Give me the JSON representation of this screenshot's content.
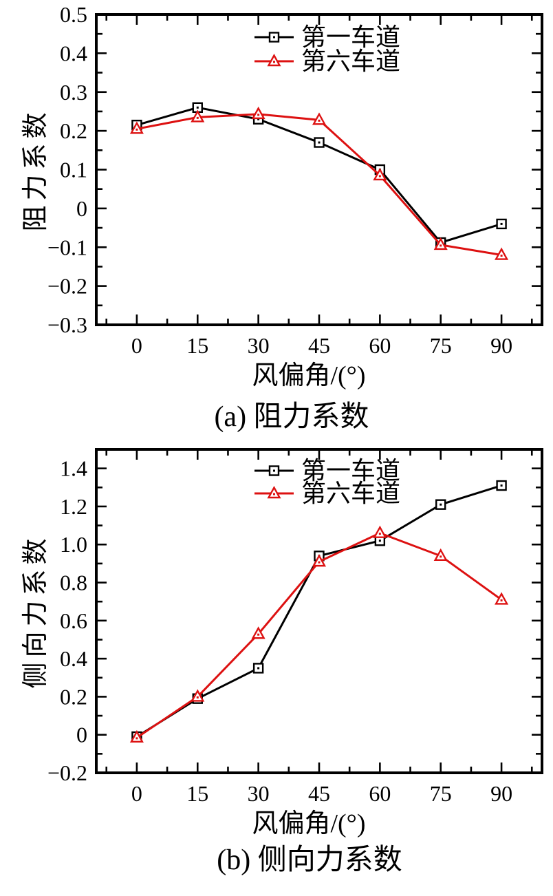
{
  "page": {
    "background": "#ffffff"
  },
  "colors": {
    "series1": "#000000",
    "series2": "#dd1111",
    "axis": "#000000"
  },
  "chart_data": [
    {
      "type": "line",
      "caption": "(a) 阻力系数",
      "xlabel": "风偏角/(°)",
      "ylabel": "阻力系数",
      "x": [
        0,
        15,
        30,
        45,
        60,
        75,
        90
      ],
      "xtick_labels": [
        "0",
        "15",
        "30",
        "45",
        "60",
        "75",
        "90"
      ],
      "xlim": [
        -10,
        100
      ],
      "ylim": [
        -0.3,
        0.5
      ],
      "ytick_values": [
        0.5,
        0.4,
        0.3,
        0.2,
        0.1,
        0,
        -0.1,
        -0.2,
        -0.3
      ],
      "ytick_labels": [
        "0.5",
        "0.4",
        "0.3",
        "0.2",
        "0.1",
        "0",
        "−0.1",
        "−0.2",
        "−0.3"
      ],
      "xtick_minor_step": 7.5,
      "grid": false,
      "legend_position": "top-center",
      "series": [
        {
          "name": "第一车道",
          "color": "#000000",
          "marker": "square",
          "values": [
            0.215,
            0.26,
            0.23,
            0.17,
            0.1,
            -0.088,
            -0.04
          ]
        },
        {
          "name": "第六车道",
          "color": "#dd1111",
          "marker": "triangle",
          "values": [
            0.205,
            0.235,
            0.243,
            0.228,
            0.085,
            -0.094,
            -0.12
          ]
        }
      ]
    },
    {
      "type": "line",
      "caption": "(b) 侧向力系数",
      "xlabel": "风偏角/(°)",
      "ylabel": "侧向力系数",
      "x": [
        0,
        15,
        30,
        45,
        60,
        75,
        90
      ],
      "xtick_labels": [
        "0",
        "15",
        "30",
        "45",
        "60",
        "75",
        "90"
      ],
      "xlim": [
        -10,
        100
      ],
      "ylim": [
        -0.2,
        1.5
      ],
      "ytick_values": [
        1.4,
        1.2,
        1.0,
        0.8,
        0.6,
        0.4,
        0.2,
        0,
        -0.2
      ],
      "ytick_labels": [
        "1.4",
        "1.2",
        "1.0",
        "0.8",
        "0.6",
        "0.4",
        "0.2",
        "0",
        "−0.2"
      ],
      "xtick_minor_step": 7.5,
      "grid": false,
      "legend_position": "top-center",
      "series": [
        {
          "name": "第一车道",
          "color": "#000000",
          "marker": "square",
          "values": [
            -0.01,
            0.19,
            0.35,
            0.94,
            1.02,
            1.21,
            1.31
          ]
        },
        {
          "name": "第六车道",
          "color": "#dd1111",
          "marker": "triangle",
          "values": [
            -0.015,
            0.2,
            0.53,
            0.91,
            1.06,
            0.94,
            0.71
          ]
        }
      ]
    }
  ]
}
